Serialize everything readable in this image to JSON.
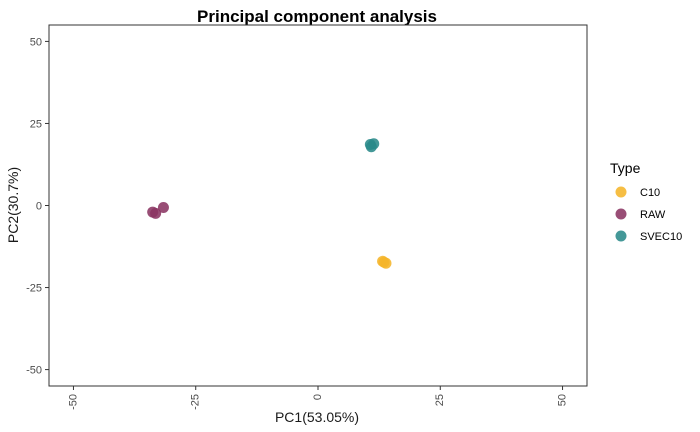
{
  "chart_data": {
    "type": "scatter",
    "title": "Principal component analysis",
    "xlabel": "PC1(53.05%)",
    "ylabel": "PC2(30.7%)",
    "xlim": [
      -55,
      55
    ],
    "ylim": [
      -55,
      55
    ],
    "xticks": [
      -50,
      -25,
      0,
      25,
      50
    ],
    "yticks": [
      -50,
      -25,
      0,
      25,
      50
    ],
    "xtick_labels": [
      "-50",
      "-25",
      "0",
      "25",
      "50"
    ],
    "ytick_labels": [
      "-50",
      "-25",
      "0",
      "25",
      "50"
    ],
    "grid": false,
    "legend": {
      "title": "Type",
      "position": "right"
    },
    "series": [
      {
        "name": "C10",
        "color": "#F5B52A",
        "points": [
          {
            "x": 13.2,
            "y": -17.0
          },
          {
            "x": 13.9,
            "y": -17.6
          },
          {
            "x": 13.5,
            "y": -17.3
          }
        ]
      },
      {
        "name": "RAW",
        "color": "#8B3563",
        "points": [
          {
            "x": -33.8,
            "y": -2.0
          },
          {
            "x": -33.2,
            "y": -2.4
          },
          {
            "x": -31.6,
            "y": -0.6
          }
        ]
      },
      {
        "name": "SVEC10",
        "color": "#2A8A8A",
        "points": [
          {
            "x": 10.7,
            "y": 18.6
          },
          {
            "x": 11.4,
            "y": 18.8
          },
          {
            "x": 10.9,
            "y": 17.9
          }
        ]
      }
    ]
  }
}
